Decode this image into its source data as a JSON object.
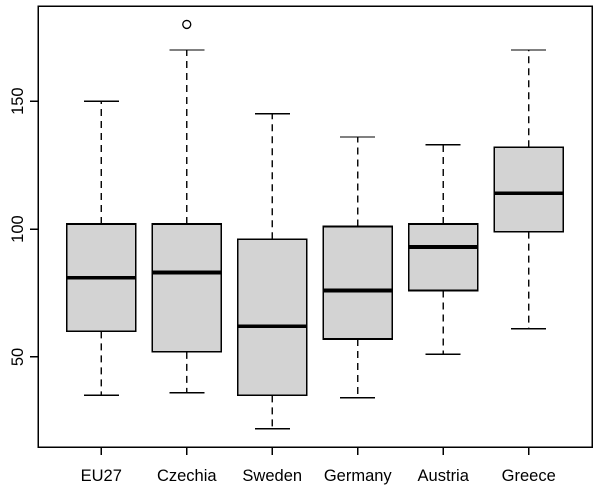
{
  "figure": {
    "background": "#ffffff"
  },
  "chart_data": {
    "type": "boxplot",
    "title": "",
    "xlabel": "",
    "ylabel": "",
    "grid": false,
    "legend": "none",
    "orientation": "vertical",
    "categories": [
      "EU27",
      "Czechia",
      "Sweden",
      "Germany",
      "Austria",
      "Greece"
    ],
    "series": [
      {
        "name": "EU27",
        "whisker_low": 35,
        "q1": 60,
        "median": 81,
        "q3": 102,
        "whisker_high": 150,
        "outliers": []
      },
      {
        "name": "Czechia",
        "whisker_low": 36,
        "q1": 52,
        "median": 83,
        "q3": 102,
        "whisker_high": 170,
        "outliers": [
          180
        ]
      },
      {
        "name": "Sweden",
        "whisker_low": 22,
        "q1": 35,
        "median": 62,
        "q3": 96,
        "whisker_high": 145,
        "outliers": []
      },
      {
        "name": "Germany",
        "whisker_low": 34,
        "q1": 57,
        "median": 76,
        "q3": 101,
        "whisker_high": 136,
        "outliers": []
      },
      {
        "name": "Austria",
        "whisker_low": 51,
        "q1": 76,
        "median": 93,
        "q3": 102,
        "whisker_high": 133,
        "outliers": []
      },
      {
        "name": "Greece",
        "whisker_low": 61,
        "q1": 99,
        "median": 114,
        "q3": 132,
        "whisker_high": 170,
        "outliers": []
      }
    ],
    "yticks": [
      50,
      100,
      150
    ],
    "ylim": [
      14.8,
      187.2
    ],
    "box_fill": "#d3d3d3",
    "line_color": "#000000",
    "background": "#ffffff"
  }
}
